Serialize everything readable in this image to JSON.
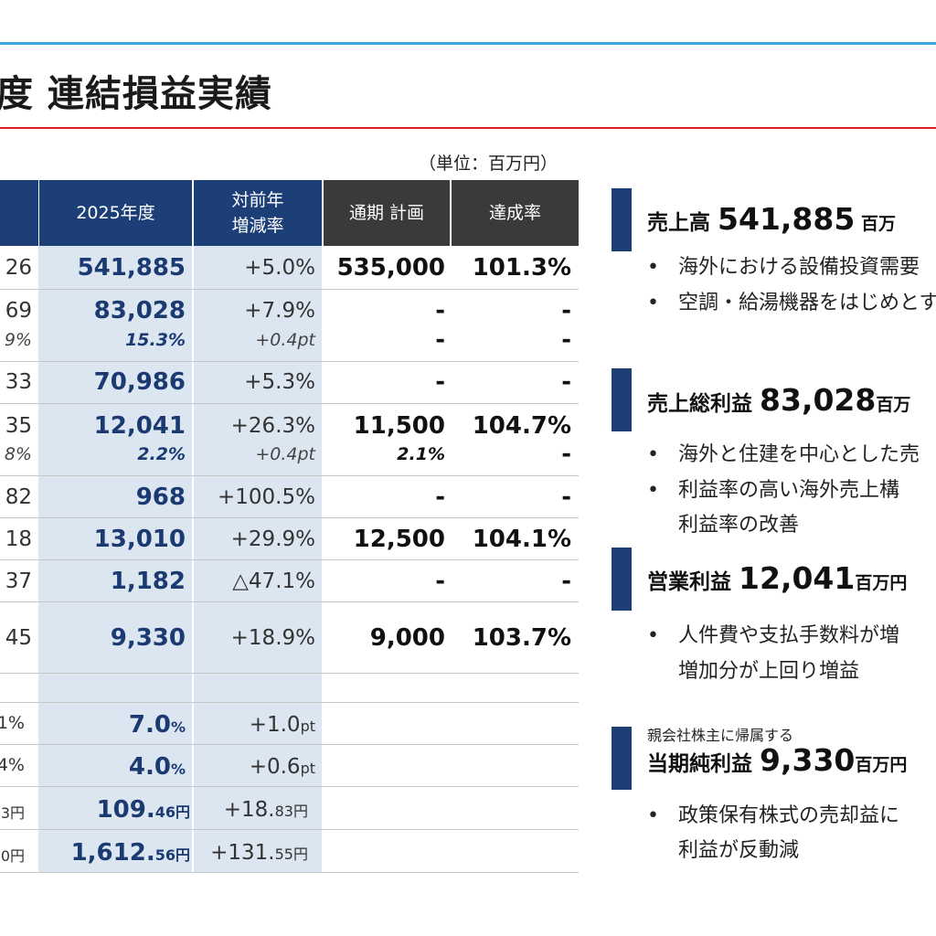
{
  "title": "度 連結損益実績",
  "unit": "（単位：百万円）",
  "header": {
    "fy": "2025年度",
    "yoy": [
      "対前年",
      "増減率"
    ],
    "plan": "通期 計画",
    "rate": "達成率"
  },
  "rows": [
    {
      "prev": "26",
      "fy": "541,885",
      "yoy": "+5.0%",
      "plan": "535,000",
      "rate": "101.3%"
    },
    {
      "prev": "69",
      "prev_sub": "9%",
      "fy": "83,028",
      "fy_sub": "15.3%",
      "yoy": "+7.9%",
      "yoy_sub": "+0.4pt",
      "plan": "-",
      "plan_sub": "-",
      "rate": "-",
      "rate_sub": "-"
    },
    {
      "prev": "33",
      "fy": "70,986",
      "yoy": "+5.3%",
      "plan": "-",
      "rate": "-"
    },
    {
      "prev": "35",
      "prev_sub": "8%",
      "fy": "12,041",
      "fy_sub": "2.2%",
      "yoy": "+26.3%",
      "yoy_sub": "+0.4pt",
      "plan": "11,500",
      "plan_sub": "2.1%",
      "rate": "104.7%",
      "rate_sub": "-"
    },
    {
      "prev": "82",
      "fy": "968",
      "yoy": "+100.5%",
      "plan": "-",
      "rate": "-"
    },
    {
      "prev": "18",
      "fy": "13,010",
      "yoy": "+29.9%",
      "plan": "12,500",
      "rate": "104.1%"
    },
    {
      "prev": "37",
      "fy": "1,182",
      "yoy": "△47.1%",
      "plan": "-",
      "rate": "-"
    },
    {
      "prev": "45",
      "fy": "9,330",
      "yoy": "+18.9%",
      "plan": "9,000",
      "rate": "103.7%"
    }
  ],
  "ratios": [
    {
      "prev": "1%",
      "fy_num": "7.0",
      "fy_unit": "%",
      "yoy_num": "+1.0",
      "yoy_unit": "pt"
    },
    {
      "prev": "4%",
      "fy_num": "4.0",
      "fy_unit": "%",
      "yoy_num": "+0.6",
      "yoy_unit": "pt"
    },
    {
      "prev": "3円",
      "fy_num": "109.",
      "fy_dec": "46円",
      "yoy_num": "+18.",
      "yoy_dec": "83円"
    },
    {
      "prev": "0円",
      "fy_num": "1,612.",
      "fy_dec": "56円",
      "yoy_num": "+131.",
      "yoy_dec": "55円"
    }
  ],
  "sections": [
    {
      "label": "売上高 ",
      "value": "541,885",
      "unit": " 百万",
      "bullets": [
        "海外における設備投資需要",
        "空調・給湯機器をはじめとす"
      ]
    },
    {
      "label": "売上総利益 ",
      "value": "83,028",
      "unit": "百万",
      "bullets": [
        "海外と住建を中心とした売",
        "利益率の高い海外売上構"
      ],
      "cont": "利益率の改善"
    },
    {
      "label": "営業利益 ",
      "value": "12,041",
      "unit": "百万円",
      "bullets": [
        "人件費や支払手数料が増"
      ],
      "cont": "増加分が上回り増益"
    },
    {
      "pre": "親会社株主に帰属する",
      "label": "当期純利益 ",
      "value": "9,330",
      "unit": "百万円",
      "bullets": [
        "政策保有株式の売却益に"
      ],
      "cont": "利益が反動減"
    }
  ],
  "bullet_mark": "•"
}
